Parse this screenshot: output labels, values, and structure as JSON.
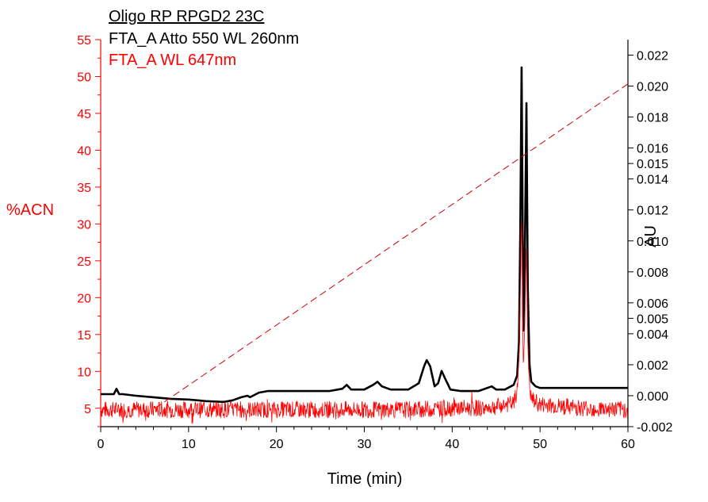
{
  "chart_data": {
    "type": "line",
    "legend": {
      "title": "Oligo RP RPGD2 23C",
      "entries": [
        {
          "label": "FTA_A Atto 550 WL 260nm",
          "color": "#000000"
        },
        {
          "label": "FTA_A WL 647nm",
          "color": "#ff0000"
        }
      ],
      "placement": "top-left"
    },
    "xlabel": "Time (min)",
    "ylabel_left": "%ACN",
    "ylabel_right": "AU",
    "xlim": [
      0,
      60
    ],
    "ylim_left": [
      2.5,
      55
    ],
    "ylim_right": [
      -0.002,
      0.023
    ],
    "x_ticks": [
      0,
      10,
      20,
      30,
      40,
      50,
      60
    ],
    "y_left_ticks": [
      5,
      10,
      15,
      20,
      25,
      30,
      35,
      40,
      45,
      50,
      55
    ],
    "y_right_ticks": [
      "0.022",
      "0.020",
      "0.018",
      "0.016",
      "0.015",
      "0.014",
      "0.012",
      "0.010",
      "0.008",
      "0.006",
      "0.005",
      "0.004",
      "0.002",
      "0.000",
      "-0.002"
    ],
    "colors": {
      "left_axis": "#ff0000",
      "right_axis": "#000000",
      "black_trace": "#000000",
      "red_trace": "#ff0000",
      "gradient": "#cc0000"
    },
    "series": [
      {
        "name": "FTA_A Atto 550 WL 260nm",
        "axis": "right",
        "color": "#000000",
        "x": [
          0,
          1.5,
          1.8,
          2.1,
          2.5,
          4,
          6,
          8,
          10,
          12,
          14,
          15,
          16,
          16.7,
          17,
          18,
          19,
          20,
          22,
          24,
          26,
          27.5,
          28,
          28.5,
          30,
          31,
          31.5,
          32,
          33,
          35,
          36.2,
          36.8,
          37.1,
          37.5,
          38,
          38.4,
          38.8,
          39.2,
          39.8,
          41,
          43,
          44.5,
          45,
          46,
          47,
          47.4,
          47.6,
          47.75,
          47.9,
          48.1,
          48.25,
          48.45,
          48.6,
          48.8,
          49,
          49.5,
          50,
          52,
          55,
          58,
          60
        ],
        "y": [
          0.0001,
          0.0001,
          0.00045,
          0.0001,
          0.0001,
          0.0,
          -0.0001,
          -0.0002,
          -0.00025,
          -0.00035,
          -0.0004,
          -0.0003,
          -0.0001,
          0.0,
          -0.0001,
          0.0002,
          0.0003,
          0.0003,
          0.0003,
          0.0003,
          0.0003,
          0.00045,
          0.0007,
          0.0004,
          0.0004,
          0.0007,
          0.0009,
          0.0006,
          0.0004,
          0.0004,
          0.0008,
          0.0019,
          0.0023,
          0.0019,
          0.0006,
          0.0008,
          0.0016,
          0.0011,
          0.0004,
          0.0003,
          0.0003,
          0.0006,
          0.0004,
          0.0004,
          0.0007,
          0.0013,
          0.0035,
          0.0105,
          0.0212,
          0.0042,
          0.008,
          0.0189,
          0.007,
          0.002,
          0.0009,
          0.0006,
          0.0005,
          0.0005,
          0.0005,
          0.0005,
          0.0005
        ]
      },
      {
        "name": "FTA_A WL 647nm",
        "axis": "right",
        "color": "#ff0000",
        "x": [
          0,
          5,
          10,
          15,
          20,
          25,
          30,
          35,
          40,
          44,
          45,
          46,
          47,
          47.4,
          47.6,
          47.75,
          47.9,
          48.1,
          48.25,
          48.45,
          48.6,
          48.8,
          49,
          50,
          55,
          60
        ],
        "y": [
          -0.0009,
          -0.0009,
          -0.0009,
          -0.0009,
          -0.0009,
          -0.0009,
          -0.0009,
          -0.0009,
          -0.0008,
          -0.0008,
          -0.0007,
          -0.0006,
          -0.0005,
          0.0003,
          0.0025,
          0.0058,
          0.0115,
          0.0022,
          0.0045,
          0.0095,
          0.0035,
          0.0005,
          -0.0002,
          -0.0006,
          -0.0008,
          -0.0009
        ]
      },
      {
        "name": "",
        "axis": "left",
        "color": "#cc0000",
        "style": "dashed",
        "x": [
          6.2,
          60
        ],
        "y": [
          5,
          49
        ]
      }
    ]
  }
}
